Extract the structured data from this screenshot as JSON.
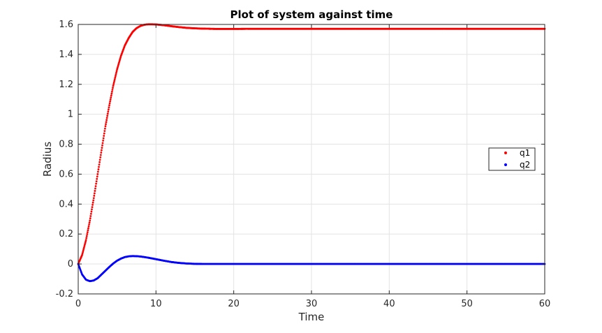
{
  "chart_data": {
    "type": "scatter",
    "title": "Plot of system against time",
    "xlabel": "Time",
    "ylabel": "Radius",
    "xlim": [
      0,
      60
    ],
    "ylim": [
      -0.2,
      1.6
    ],
    "xticks": [
      0,
      10,
      20,
      30,
      40,
      50,
      60
    ],
    "yticks": [
      -0.2,
      0,
      0.2,
      0.4,
      0.6,
      0.8,
      1,
      1.2,
      1.4,
      1.6
    ],
    "grid": true,
    "legend_position": "right-middle",
    "series": [
      {
        "name": "q1",
        "color": "#ff0000",
        "x": [
          0,
          0.5,
          1,
          1.5,
          2,
          2.5,
          3,
          3.5,
          4,
          4.5,
          5,
          5.5,
          6,
          6.5,
          7,
          7.5,
          8,
          8.5,
          9,
          9.5,
          10,
          11,
          12,
          13,
          14,
          15,
          16,
          17,
          18,
          19,
          20,
          22,
          25,
          30,
          35,
          40,
          45,
          50,
          55,
          60
        ],
        "values": [
          0,
          0.06,
          0.16,
          0.29,
          0.44,
          0.6,
          0.76,
          0.92,
          1.06,
          1.19,
          1.3,
          1.39,
          1.46,
          1.51,
          1.55,
          1.575,
          1.59,
          1.598,
          1.601,
          1.601,
          1.6,
          1.595,
          1.588,
          1.582,
          1.577,
          1.574,
          1.572,
          1.571,
          1.57,
          1.57,
          1.57,
          1.571,
          1.571,
          1.571,
          1.571,
          1.571,
          1.571,
          1.571,
          1.571,
          1.571
        ]
      },
      {
        "name": "q2",
        "color": "#0000ff",
        "x": [
          0,
          0.5,
          1,
          1.5,
          2,
          2.5,
          3,
          3.5,
          4,
          4.5,
          5,
          5.5,
          6,
          6.5,
          7,
          7.5,
          8,
          8.5,
          9,
          9.5,
          10,
          11,
          12,
          13,
          14,
          15,
          16,
          17,
          18,
          19,
          20,
          22,
          25,
          30,
          35,
          40,
          45,
          50,
          55,
          60
        ],
        "values": [
          0,
          -0.07,
          -0.105,
          -0.115,
          -0.11,
          -0.095,
          -0.07,
          -0.045,
          -0.02,
          0.003,
          0.022,
          0.036,
          0.046,
          0.051,
          0.053,
          0.052,
          0.05,
          0.046,
          0.042,
          0.037,
          0.032,
          0.022,
          0.013,
          0.007,
          0.003,
          0.001,
          0.0,
          0.0,
          0.0,
          0.0,
          0.0,
          0.0,
          0.0,
          0.0,
          0.0,
          0.0,
          0.0,
          0.0,
          0.0,
          0.0
        ]
      }
    ]
  }
}
